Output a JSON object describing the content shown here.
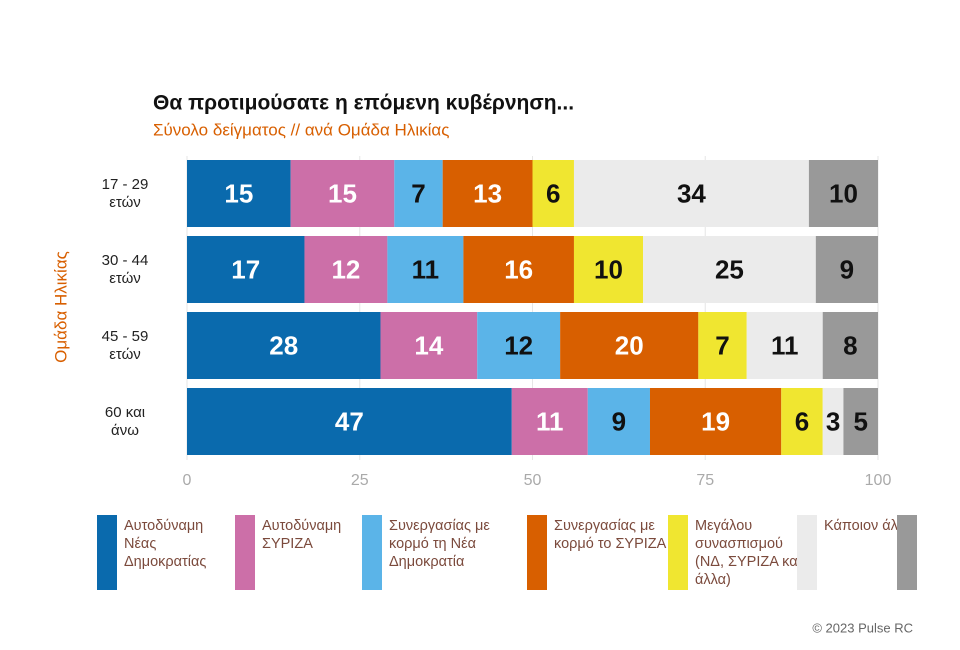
{
  "chart_data": {
    "type": "stacked-bar-horizontal",
    "title": "Θα προτιμούσατε η επόμενη κυβέρνηση...",
    "subtitle": "Σύνολο δείγματος // ανά Ομάδα Ηλικίας",
    "y_label": "Ομάδα Ηλικίας",
    "categories": [
      "17 - 29 ετών",
      "30 - 44 ετών",
      "45 - 59 ετών",
      "60 και άνω"
    ],
    "series": [
      {
        "name": "Αυτοδύναμη Νέας Δημοκρατίας",
        "color": "#0a6aad",
        "values": [
          15,
          17,
          28,
          47
        ]
      },
      {
        "name": "Αυτοδύναμη ΣΥΡΙΖΑ",
        "color": "#cc6fa8",
        "values": [
          15,
          12,
          14,
          11
        ]
      },
      {
        "name": "Συνεργασίας με κορμό τη Νέα Δημοκρατία",
        "color": "#5bb4e8",
        "values": [
          7,
          11,
          12,
          9
        ]
      },
      {
        "name": "Συνεργασίας με κορμό το ΣΥΡΙΖΑ",
        "color": "#d85f00",
        "values": [
          13,
          16,
          20,
          19
        ]
      },
      {
        "name": "Μεγάλου συνασπισμού (ΝΔ, ΣΥΡΙΖΑ και άλλα)",
        "color": "#f0e630",
        "values": [
          6,
          10,
          7,
          6
        ]
      },
      {
        "name": "Κάποιον άλλο",
        "color": "#ebebeb",
        "values": [
          34,
          25,
          11,
          3
        ]
      },
      {
        "name": null,
        "color": "#999999",
        "values": [
          10,
          9,
          8,
          5
        ]
      }
    ],
    "xlim": [
      0,
      100
    ],
    "xticks": [
      0,
      25,
      50,
      75,
      100
    ],
    "footer": "© 2023 Pulse RC"
  }
}
